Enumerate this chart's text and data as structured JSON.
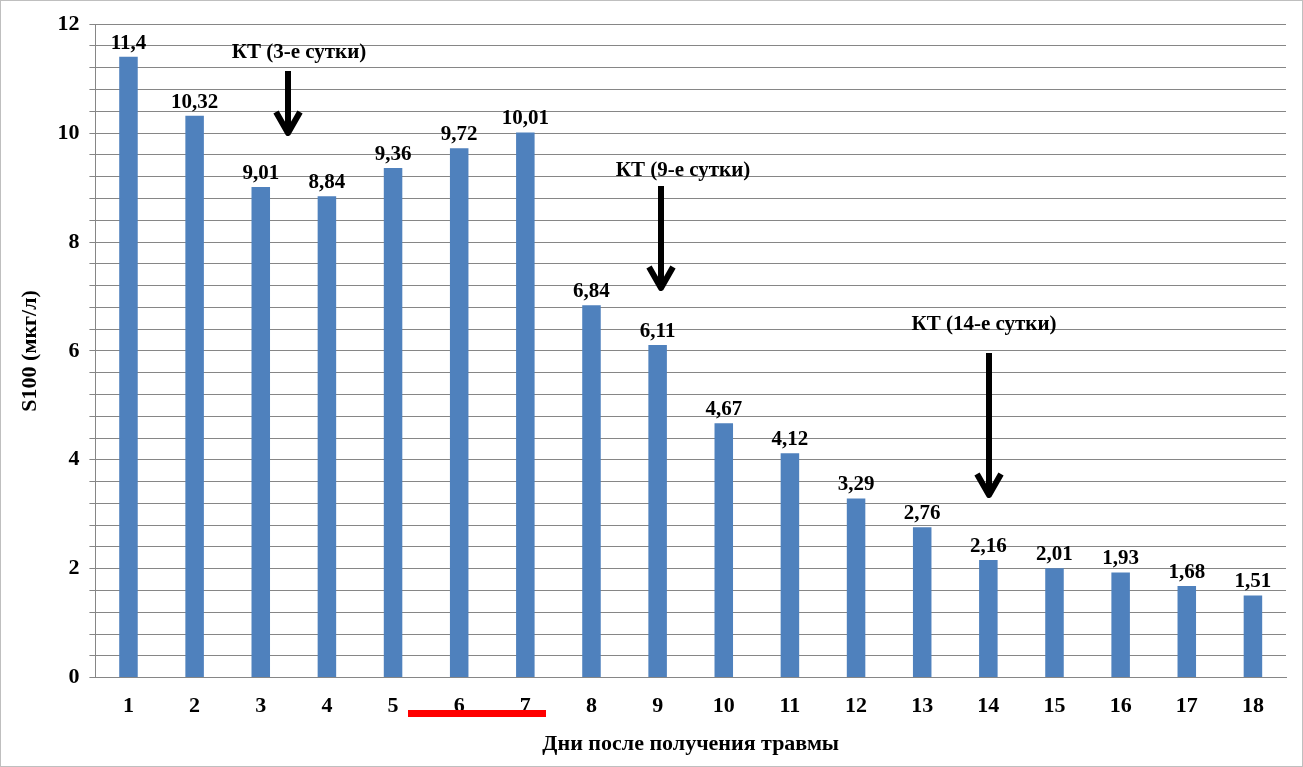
{
  "chart_data": {
    "type": "bar",
    "xlabel": "Дни после получения травмы",
    "ylabel": "S100 (мкг/л)",
    "categories": [
      "1",
      "2",
      "3",
      "4",
      "5",
      "6",
      "7",
      "8",
      "9",
      "10",
      "11",
      "12",
      "13",
      "14",
      "15",
      "16",
      "17",
      "18"
    ],
    "values": [
      11.4,
      10.32,
      9.01,
      8.84,
      9.36,
      9.72,
      10.01,
      6.84,
      6.11,
      4.67,
      4.12,
      3.29,
      2.76,
      2.16,
      2.01,
      1.93,
      1.68,
      1.51
    ],
    "value_labels": [
      "11,4",
      "10,32",
      "9,01",
      "8,84",
      "9,36",
      "9,72",
      "10,01",
      "6,84",
      "6,11",
      "4,67",
      "4,12",
      "3,29",
      "2,76",
      "2,16",
      "2,01",
      "1,93",
      "1,68",
      "1,51"
    ],
    "color": "#4f81bd",
    "ylim": [
      0,
      12
    ],
    "yticks": [
      0,
      {
        "value": 0.4,
        "label": null
      },
      {
        "value": 0.8,
        "label": null
      },
      {
        "value": 1.2,
        "label": null
      },
      {
        "value": 1.6,
        "label": null
      },
      2,
      {
        "value": 2.4,
        "label": null
      },
      {
        "value": 2.8,
        "label": null
      },
      {
        "value": 3.2,
        "label": null
      },
      {
        "value": 3.6,
        "label": null
      },
      4,
      {
        "value": 4.4,
        "label": null
      },
      {
        "value": 4.8,
        "label": null
      },
      {
        "value": 5.2,
        "label": null
      },
      {
        "value": 5.6,
        "label": null
      },
      6,
      {
        "value": 6.4,
        "label": null
      },
      {
        "value": 6.8,
        "label": null
      },
      {
        "value": 7.2,
        "label": null
      },
      {
        "value": 7.6,
        "label": null
      },
      8,
      {
        "value": 8.4,
        "label": null
      },
      {
        "value": 8.8,
        "label": null
      },
      {
        "value": 9.2,
        "label": null
      },
      {
        "value": 9.6,
        "label": null
      },
      10,
      {
        "value": 10.4,
        "label": null
      },
      {
        "value": 10.8,
        "label": null
      },
      {
        "value": 11.2,
        "label": null
      },
      {
        "value": 11.6,
        "label": null
      },
      12
    ],
    "grid": "y",
    "annotations": [
      "КТ (3-е сутки)",
      "КТ (9-е сутки)",
      "КТ (14-е сутки)"
    ]
  }
}
